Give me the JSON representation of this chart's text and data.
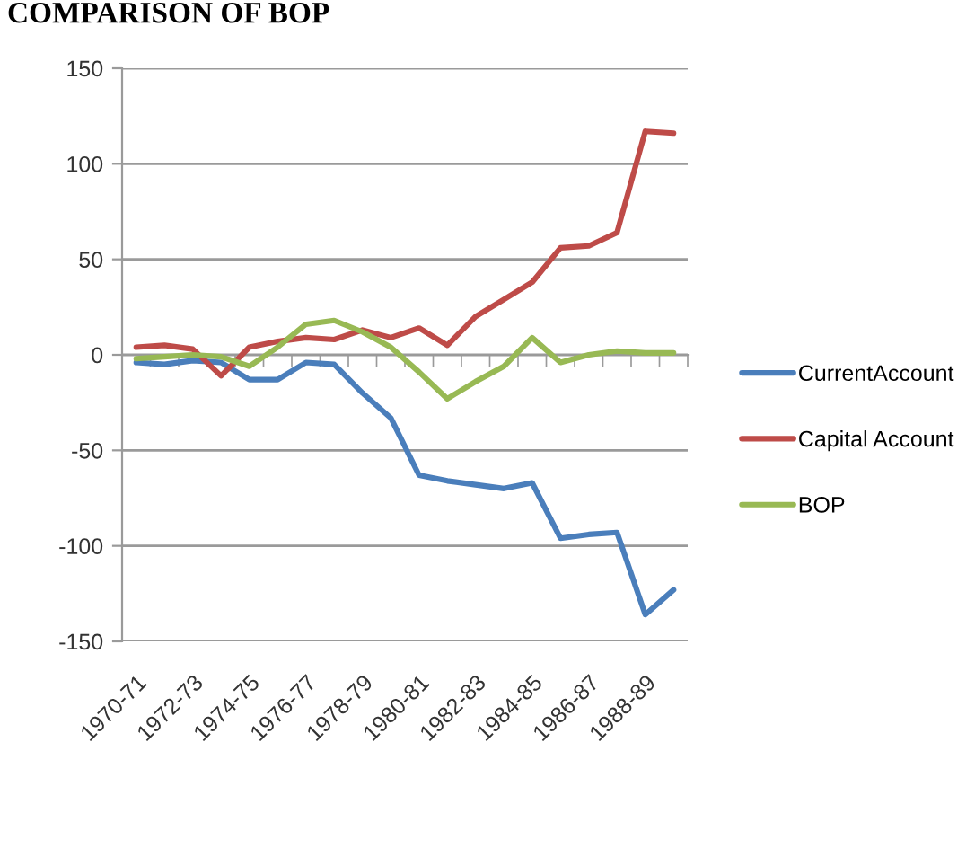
{
  "chart_data": {
    "type": "line",
    "title": "COMPARISON OF BOP",
    "categories": [
      "1970-71",
      null,
      "1972-73",
      null,
      "1974-75",
      null,
      "1976-77",
      null,
      "1978-79",
      null,
      "1980-81",
      null,
      "1982-83",
      null,
      "1984-85",
      null,
      "1986-87",
      null,
      "1988-89",
      null
    ],
    "series": [
      {
        "name": "CurrentAccount",
        "color": "#4a7ebb",
        "values": [
          -4,
          -5,
          -3,
          -4,
          -13,
          -13,
          -4,
          -5,
          -20,
          -33,
          -63,
          -66,
          -68,
          -70,
          -67,
          -96,
          -94,
          -93,
          -136,
          -123
        ]
      },
      {
        "name": "Capital Account",
        "color": "#be4b48",
        "values": [
          4,
          5,
          3,
          -11,
          4,
          7,
          9,
          8,
          13,
          9,
          14,
          5,
          20,
          29,
          38,
          56,
          57,
          64,
          117,
          116
        ]
      },
      {
        "name": "BOP",
        "color": "#98b954",
        "values": [
          -2,
          -1,
          0,
          -1,
          -6,
          4,
          16,
          18,
          12,
          4,
          -9,
          -23,
          -14,
          -6,
          9,
          -4,
          0,
          2,
          1,
          1
        ]
      }
    ],
    "ylim": [
      -150,
      150
    ],
    "yticks": [
      150,
      100,
      50,
      0,
      -50,
      -100,
      -150
    ],
    "grid": "y",
    "legend": "right",
    "line_style": "solid"
  }
}
